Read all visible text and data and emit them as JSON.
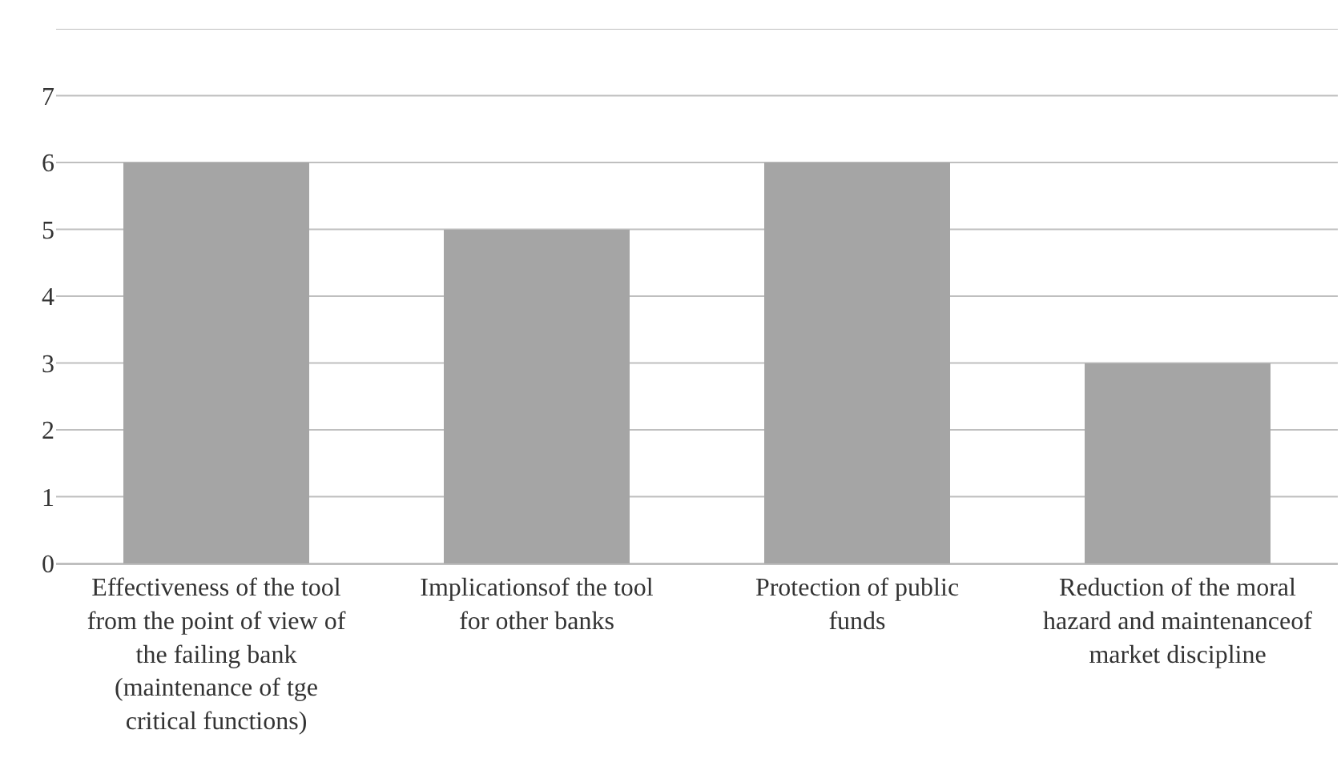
{
  "chart_data": {
    "type": "bar",
    "categories": [
      "Effectiveness of the tool from the point of view of the failing bank (maintenance of tge critical functions)",
      "Implicationsof the tool for other banks",
      "Protection of public funds",
      "Reduction of the moral hazard and maintenanceof market discipline"
    ],
    "values": [
      6,
      5,
      6,
      3
    ],
    "color": "#a5a5a5",
    "ylim": [
      0,
      8
    ],
    "yticks": [
      0,
      1,
      2,
      3,
      4,
      5,
      6,
      7,
      {
        "value": 8,
        "label": null
      }
    ],
    "grid": "y"
  }
}
